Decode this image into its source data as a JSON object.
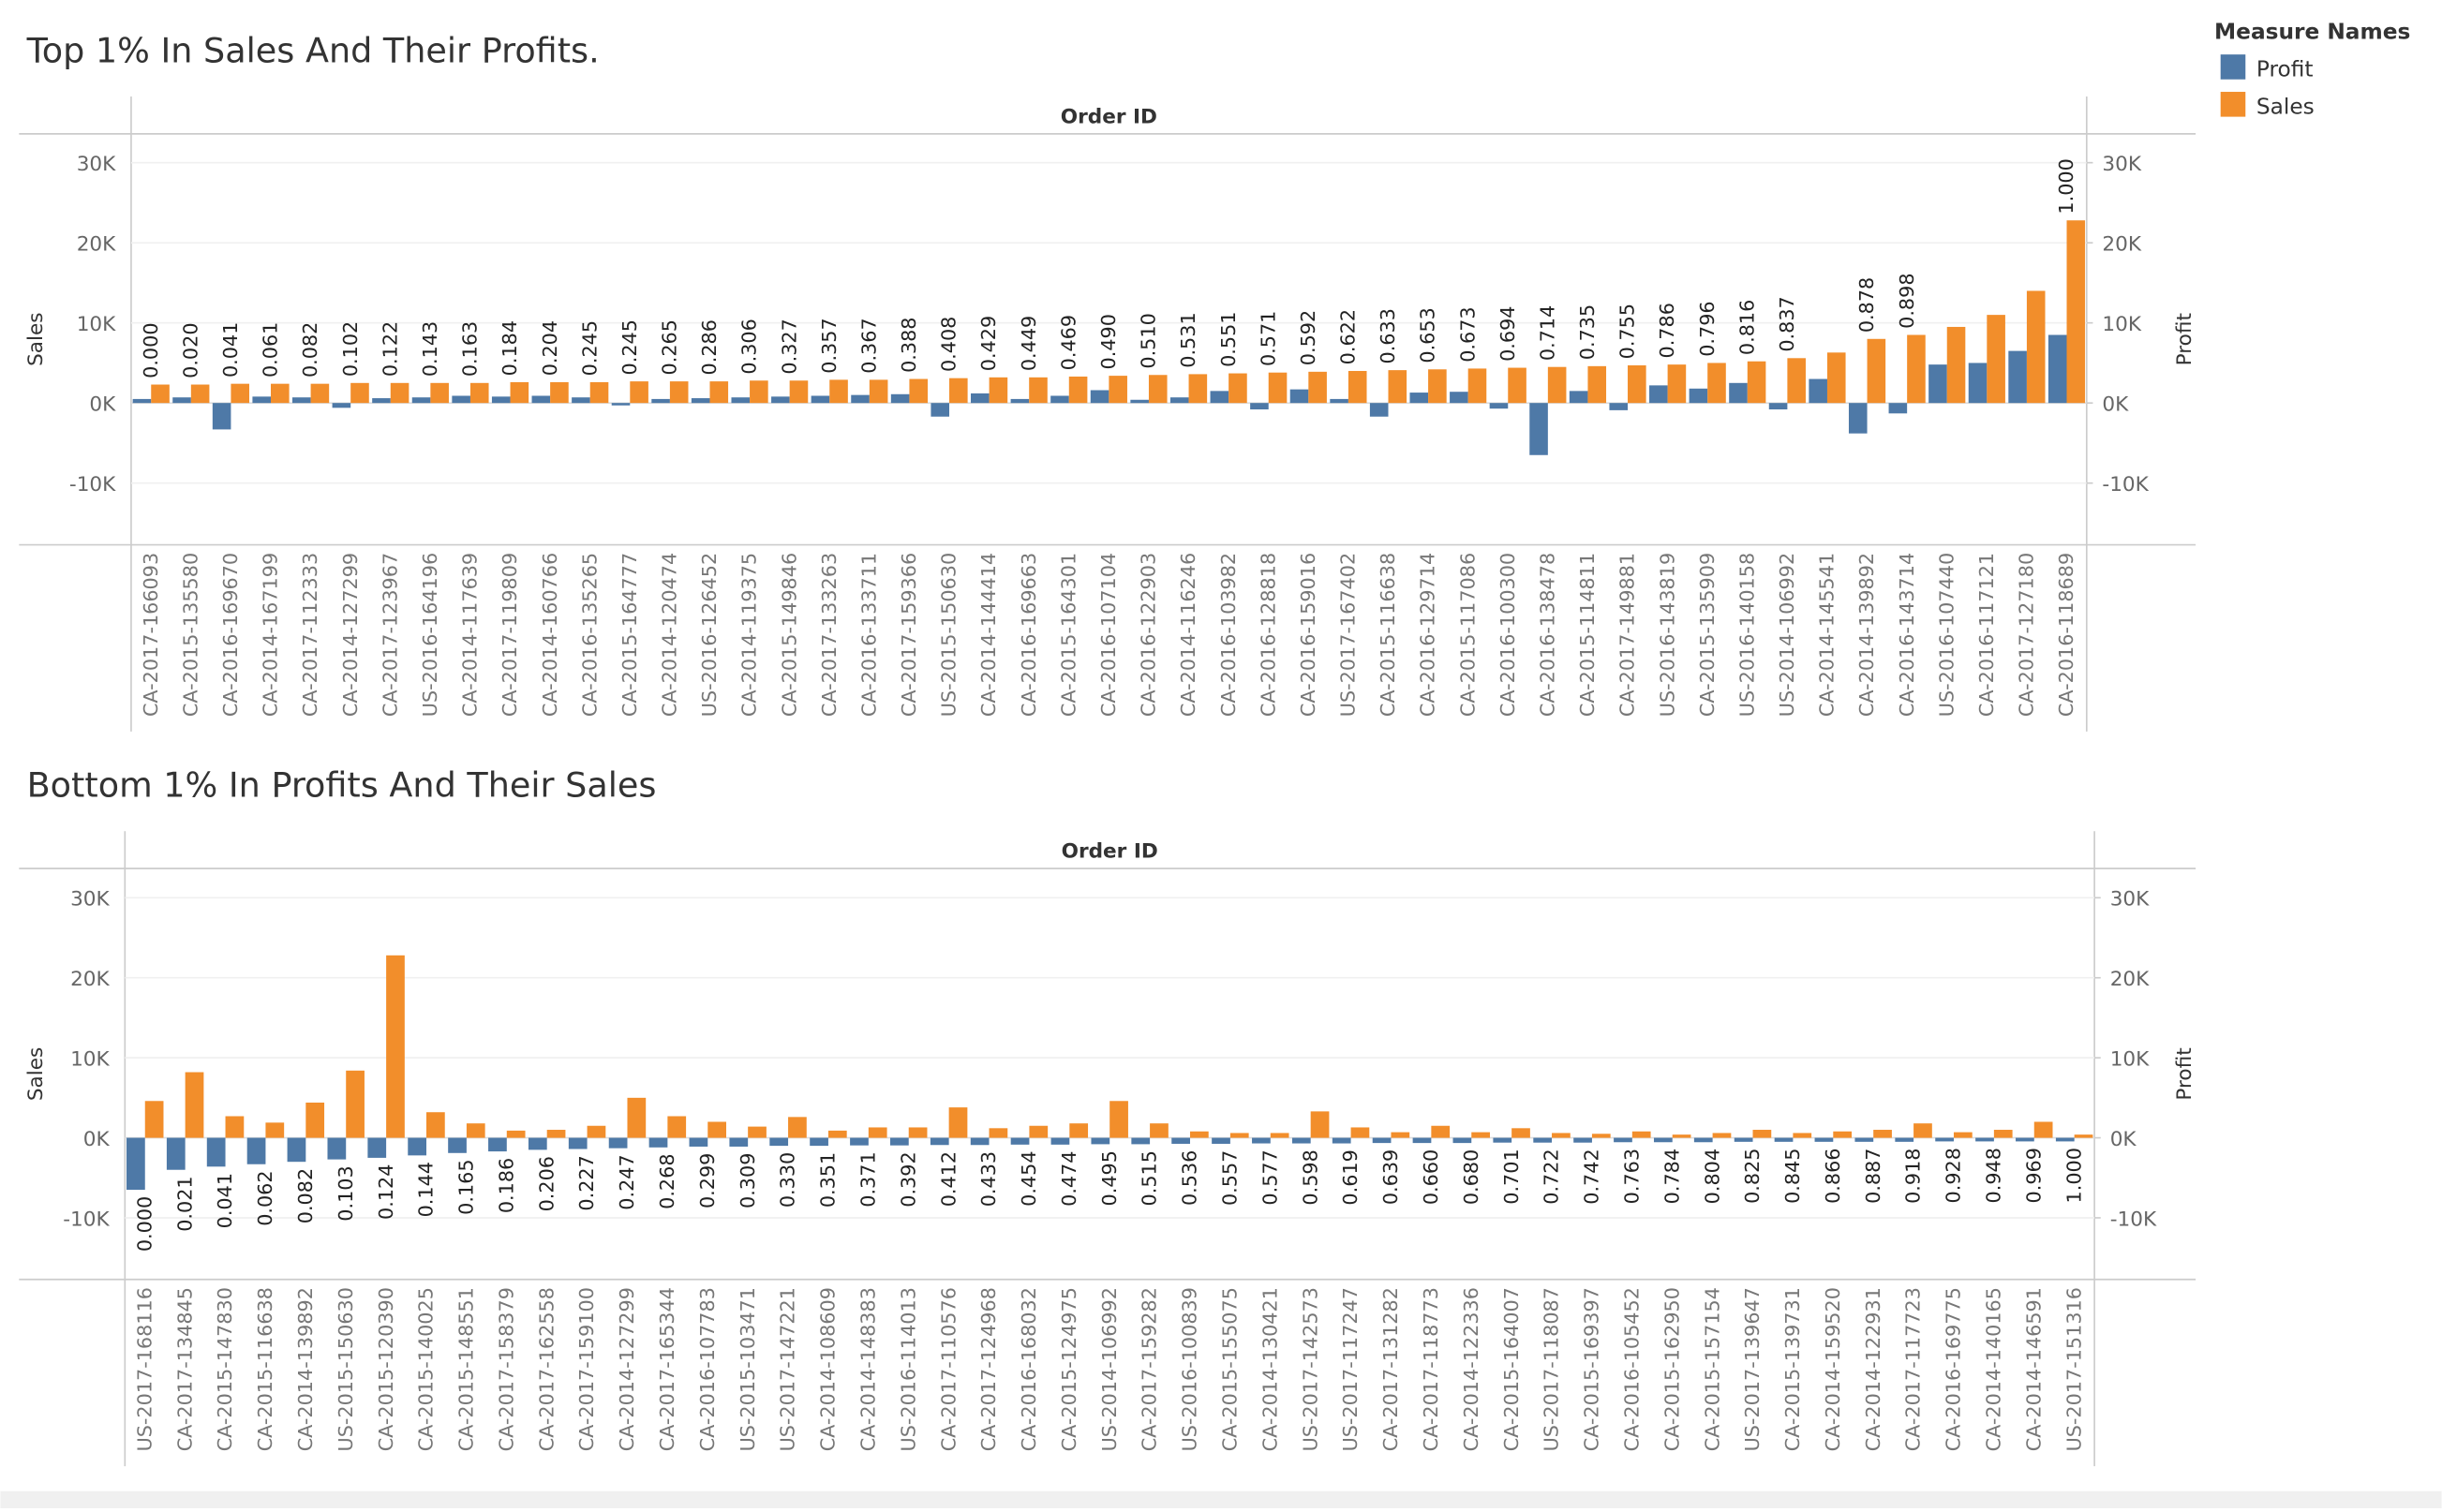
{
  "legend": {
    "title": "Measure Names",
    "position": "right"
  },
  "chart_data": [
    {
      "type": "bar",
      "title": "Top 1% In Sales And Their Profits.",
      "header": "Order ID",
      "y_label": "Sales",
      "y2_label": "Profit",
      "ylim": [
        -17700,
        33600
      ],
      "y2lim": [
        -17700,
        33600
      ],
      "yticks": [
        {
          "value": 30000,
          "label": "30K"
        },
        {
          "value": 20000,
          "label": "20K"
        },
        {
          "value": 10000,
          "label": "10K"
        },
        {
          "value": 0,
          "label": "0K"
        },
        {
          "value": -10000,
          "label": "-10K"
        }
      ],
      "y2ticks": [
        {
          "value": 30000,
          "label": "30K"
        },
        {
          "value": 20000,
          "label": "20K"
        },
        {
          "value": 10000,
          "label": "10K"
        },
        {
          "value": 0,
          "label": "0K"
        },
        {
          "value": -10000,
          "label": "-10K"
        }
      ],
      "grid": true,
      "categories": [
        "CA-2017-166093",
        "CA-2015-135580",
        "CA-2016-169670",
        "CA-2014-167199",
        "CA-2017-112333",
        "CA-2014-127299",
        "CA-2017-123967",
        "US-2016-164196",
        "CA-2014-117639",
        "CA-2017-119809",
        "CA-2014-160766",
        "CA-2016-135265",
        "CA-2015-164777",
        "CA-2014-120474",
        "US-2016-126452",
        "CA-2014-119375",
        "CA-2015-149846",
        "CA-2017-133263",
        "CA-2016-133711",
        "CA-2017-159366",
        "US-2015-150630",
        "CA-2014-144414",
        "CA-2016-169663",
        "CA-2015-164301",
        "CA-2016-107104",
        "CA-2016-122903",
        "CA-2014-116246",
        "CA-2016-103982",
        "CA-2016-128818",
        "CA-2016-159016",
        "US-2017-167402",
        "CA-2015-116638",
        "CA-2016-129714",
        "CA-2015-117086",
        "CA-2016-100300",
        "CA-2016-138478",
        "CA-2015-114811",
        "CA-2017-149881",
        "US-2016-143819",
        "CA-2015-135909",
        "US-2016-140158",
        "US-2014-106992",
        "CA-2014-145541",
        "CA-2014-139892",
        "CA-2016-143714",
        "US-2016-107440",
        "CA-2016-117121",
        "CA-2017-127180",
        "CA-2016-118689"
      ],
      "series": [
        {
          "name": "Profit",
          "color": "#4e79a7",
          "axis": "y2",
          "values": [
            500,
            700,
            -3300,
            800,
            700,
            -600,
            600,
            700,
            900,
            800,
            900,
            700,
            -300,
            500,
            600,
            700,
            800,
            900,
            1000,
            1100,
            -1700,
            1200,
            500,
            900,
            1600,
            400,
            700,
            1500,
            -800,
            1700,
            500,
            -1700,
            1300,
            1400,
            -700,
            -6500,
            1500,
            -900,
            2200,
            1800,
            2500,
            -800,
            3000,
            -3800,
            -1300,
            4800,
            5000,
            6500,
            8500
          ]
        },
        {
          "name": "Sales",
          "color": "#f28e2b",
          "values": [
            2300,
            2300,
            2400,
            2400,
            2400,
            2500,
            2500,
            2500,
            2500,
            2600,
            2600,
            2600,
            2700,
            2700,
            2700,
            2800,
            2800,
            2900,
            2900,
            3000,
            3100,
            3200,
            3200,
            3300,
            3400,
            3500,
            3600,
            3700,
            3800,
            3900,
            4000,
            4100,
            4200,
            4300,
            4400,
            4500,
            4600,
            4700,
            4800,
            5000,
            5200,
            5600,
            6300,
            8000,
            8500,
            9500,
            11000,
            14000,
            22800
          ]
        }
      ],
      "rank_labels": [
        "0.000",
        "0.020",
        "0.041",
        "0.061",
        "0.082",
        "0.102",
        "0.122",
        "0.143",
        "0.163",
        "0.184",
        "0.204",
        "0.245",
        "0.245",
        "0.265",
        "0.286",
        "0.306",
        "0.327",
        "0.357",
        "0.367",
        "0.388",
        "0.408",
        "0.429",
        "0.449",
        "0.469",
        "0.490",
        "0.510",
        "0.531",
        "0.551",
        "0.571",
        "0.592",
        "0.622",
        "0.633",
        "0.653",
        "0.673",
        "0.694",
        "0.714",
        "0.735",
        "0.755",
        "0.786",
        "0.796",
        "0.816",
        "0.837",
        null,
        "0.878",
        "0.898",
        null,
        null,
        null,
        "1.000"
      ]
    },
    {
      "type": "bar",
      "title": "Bottom 1% In Profits And Their Sales",
      "header": "Order ID",
      "y_label": "Sales",
      "y2_label": "Profit",
      "ylim": [
        -17700,
        33650
      ],
      "y2lim": [
        -17700,
        33650
      ],
      "yticks": [
        {
          "value": 30000,
          "label": "30K"
        },
        {
          "value": 20000,
          "label": "20K"
        },
        {
          "value": 10000,
          "label": "10K"
        },
        {
          "value": 0,
          "label": "0K"
        },
        {
          "value": -10000,
          "label": "-10K"
        }
      ],
      "y2ticks": [
        {
          "value": 30000,
          "label": "30K"
        },
        {
          "value": 20000,
          "label": "20K"
        },
        {
          "value": 10000,
          "label": "10K"
        },
        {
          "value": 0,
          "label": "0K"
        },
        {
          "value": -10000,
          "label": "-10K"
        }
      ],
      "grid": true,
      "categories": [
        "US-2017-168116",
        "CA-2017-134845",
        "CA-2015-147830",
        "CA-2015-116638",
        "CA-2014-139892",
        "US-2015-150630",
        "CA-2015-120390",
        "CA-2015-140025",
        "CA-2015-148551",
        "CA-2017-158379",
        "CA-2017-162558",
        "CA-2017-159100",
        "CA-2014-127299",
        "CA-2017-165344",
        "CA-2016-107783",
        "US-2015-103471",
        "US-2017-147221",
        "CA-2014-108609",
        "CA-2014-148383",
        "US-2016-114013",
        "CA-2017-110576",
        "CA-2017-124968",
        "CA-2016-168032",
        "CA-2015-124975",
        "US-2014-106992",
        "CA-2017-159282",
        "US-2016-100839",
        "CA-2015-155075",
        "CA-2014-130421",
        "US-2017-142573",
        "US-2017-117247",
        "CA-2017-131282",
        "CA-2017-118773",
        "CA-2014-122336",
        "CA-2015-164007",
        "US-2017-118087",
        "CA-2015-169397",
        "CA-2016-105452",
        "CA-2015-162950",
        "CA-2015-157154",
        "US-2017-139647",
        "CA-2015-139731",
        "CA-2014-159520",
        "CA-2014-122931",
        "CA-2017-117723",
        "CA-2016-169775",
        "CA-2014-140165",
        "CA-2014-146591",
        "US-2017-151316"
      ],
      "series": [
        {
          "name": "Profit",
          "color": "#4e79a7",
          "axis": "y2",
          "values": [
            -6500,
            -4000,
            -3600,
            -3300,
            -3000,
            -2700,
            -2500,
            -2200,
            -1900,
            -1700,
            -1500,
            -1400,
            -1300,
            -1200,
            -1100,
            -1100,
            -1000,
            -1000,
            -950,
            -950,
            -900,
            -900,
            -850,
            -850,
            -800,
            -800,
            -750,
            -750,
            -700,
            -700,
            -700,
            -650,
            -650,
            -650,
            -600,
            -600,
            -600,
            -550,
            -550,
            -550,
            -500,
            -500,
            -500,
            -500,
            -500,
            -450,
            -450,
            -450,
            -450
          ]
        },
        {
          "name": "Sales",
          "color": "#f28e2b",
          "values": [
            4600,
            8200,
            2700,
            1900,
            4400,
            8400,
            22800,
            3200,
            1800,
            900,
            1000,
            1500,
            5000,
            2700,
            2000,
            1400,
            2600,
            900,
            1300,
            1300,
            3800,
            1200,
            1500,
            1800,
            4600,
            1800,
            800,
            600,
            600,
            3300,
            1300,
            700,
            1500,
            700,
            1200,
            600,
            500,
            800,
            400,
            600,
            1000,
            600,
            800,
            1000,
            1800,
            700,
            1000,
            2000,
            400
          ]
        }
      ],
      "rank_labels": [
        "0.000",
        "0.021",
        "0.041",
        "0.062",
        "0.082",
        "0.103",
        "0.124",
        "0.144",
        "0.165",
        "0.186",
        "0.206",
        "0.227",
        "0.247",
        "0.268",
        "0.299",
        "0.309",
        "0.330",
        "0.351",
        "0.371",
        "0.392",
        "0.412",
        "0.433",
        "0.454",
        "0.474",
        "0.495",
        "0.515",
        "0.536",
        "0.557",
        "0.577",
        "0.598",
        "0.619",
        "0.639",
        "0.660",
        "0.680",
        "0.701",
        "0.722",
        "0.742",
        "0.763",
        "0.784",
        "0.804",
        "0.825",
        "0.845",
        "0.866",
        "0.887",
        "0.918",
        "0.928",
        "0.948",
        "0.969",
        "1.000"
      ]
    }
  ]
}
